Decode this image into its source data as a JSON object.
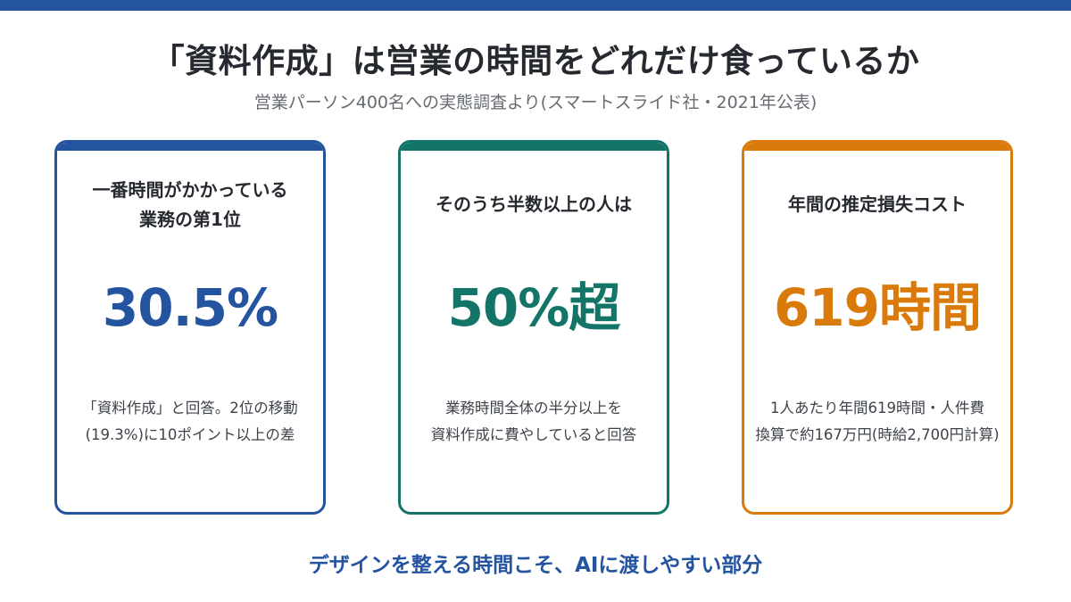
{
  "colors": {
    "accent_blue": "#2453a0",
    "accent_green": "#137567",
    "accent_orange": "#d97a0b",
    "text_dark": "#262a30",
    "text_gray": "#666b72"
  },
  "title": "「資料作成」は営業の時間をどれだけ食っているか",
  "subtitle": "営業パーソン400名への実態調査より(スマートスライド社・2021年公表)",
  "cards": [
    {
      "label_lines": [
        "一番時間がかかっている",
        "業務の第1位"
      ],
      "value": "30.5%",
      "note_lines": [
        "「資料作成」と回答。2位の移動",
        "(19.3%)に10ポイント以上の差"
      ]
    },
    {
      "label_lines": [
        "そのうち半数以上の人は"
      ],
      "value": "50%超",
      "note_lines": [
        "業務時間全体の半分以上を",
        "資料作成に費やしていると回答"
      ]
    },
    {
      "label_lines": [
        "年間の推定損失コスト"
      ],
      "value": "619時間",
      "note_lines": [
        "1人あたり年間619時間・人件費",
        "換算で約167万円(時給2,700円計算)"
      ]
    }
  ],
  "footer": "デザインを整える時間こそ、AIに渡しやすい部分"
}
